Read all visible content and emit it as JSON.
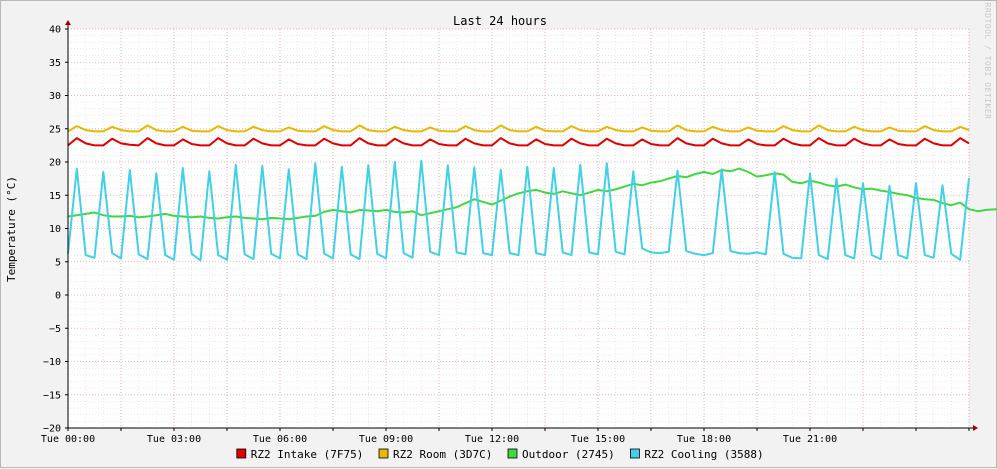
{
  "colors": {
    "background": "#f2f2f2",
    "plot_bg": "#ffffff",
    "grid_minor": "#dcdcdc",
    "grid_major": "#e8a0a0",
    "axis_arrow": "#a00000"
  },
  "chart_data": {
    "type": "line",
    "title": "Last 24 hours",
    "ylabel": "Temperature (°C)",
    "watermark": "RRDTOOL / TOBI OETIKER",
    "ylim": [
      -20,
      40
    ],
    "yticks": [
      40,
      35,
      30,
      25,
      20,
      15,
      10,
      5,
      0,
      -5,
      -10,
      -15,
      -20
    ],
    "xlim_hours": [
      0,
      25.5
    ],
    "xticks": [
      {
        "hour": 0,
        "label": "Tue 00:00"
      },
      {
        "hour": 3,
        "label": "Tue 03:00"
      },
      {
        "hour": 6,
        "label": "Tue 06:00"
      },
      {
        "hour": 9,
        "label": "Tue 09:00"
      },
      {
        "hour": 12,
        "label": "Tue 12:00"
      },
      {
        "hour": 15,
        "label": "Tue 15:00"
      },
      {
        "hour": 18,
        "label": "Tue 18:00"
      },
      {
        "hour": 21,
        "label": "Tue 21:00"
      }
    ],
    "sample_step_hours": 0.25,
    "series": [
      {
        "name": "RZ2 Intake (7F75)",
        "color": "#e00000",
        "values": [
          22.5,
          23.6,
          22.8,
          22.5,
          22.5,
          23.5,
          22.8,
          22.6,
          22.5,
          23.6,
          22.8,
          22.5,
          22.5,
          23.4,
          22.7,
          22.5,
          22.5,
          23.6,
          22.8,
          22.5,
          22.5,
          23.5,
          22.8,
          22.5,
          22.5,
          23.4,
          22.7,
          22.5,
          22.5,
          23.5,
          22.8,
          22.5,
          22.5,
          23.6,
          22.8,
          22.5,
          22.5,
          23.5,
          22.8,
          22.5,
          22.5,
          23.4,
          22.7,
          22.5,
          22.5,
          23.5,
          22.8,
          22.5,
          22.5,
          23.6,
          22.8,
          22.5,
          22.5,
          23.4,
          22.7,
          22.5,
          22.5,
          23.5,
          22.8,
          22.5,
          22.5,
          23.5,
          22.8,
          22.5,
          22.5,
          23.4,
          22.7,
          22.5,
          22.5,
          23.6,
          22.8,
          22.5,
          22.5,
          23.5,
          22.8,
          22.5,
          22.5,
          23.4,
          22.7,
          22.5,
          22.5,
          23.5,
          22.8,
          22.5,
          22.5,
          23.6,
          22.8,
          22.5,
          22.5,
          23.5,
          22.8,
          22.5,
          22.5,
          23.4,
          22.7,
          22.5,
          22.5,
          23.5,
          22.8,
          22.5,
          22.5,
          23.6,
          22.8
        ]
      },
      {
        "name": "RZ2 Room (3D7C)",
        "color": "#e8b800",
        "values": [
          24.6,
          25.4,
          24.8,
          24.6,
          24.6,
          25.3,
          24.8,
          24.6,
          24.6,
          25.5,
          24.8,
          24.6,
          24.6,
          25.3,
          24.7,
          24.6,
          24.6,
          25.4,
          24.8,
          24.6,
          24.6,
          25.3,
          24.8,
          24.6,
          24.6,
          25.2,
          24.7,
          24.6,
          24.6,
          25.4,
          24.8,
          24.6,
          24.6,
          25.5,
          24.8,
          24.6,
          24.6,
          25.3,
          24.8,
          24.6,
          24.6,
          25.2,
          24.7,
          24.6,
          24.6,
          25.4,
          24.8,
          24.6,
          24.6,
          25.5,
          24.8,
          24.6,
          24.6,
          25.3,
          24.7,
          24.6,
          24.6,
          25.4,
          24.8,
          24.6,
          24.6,
          25.3,
          24.8,
          24.6,
          24.6,
          25.2,
          24.7,
          24.6,
          24.6,
          25.5,
          24.8,
          24.6,
          24.6,
          25.3,
          24.8,
          24.6,
          24.6,
          25.2,
          24.7,
          24.6,
          24.6,
          25.4,
          24.8,
          24.6,
          24.6,
          25.5,
          24.8,
          24.6,
          24.6,
          25.3,
          24.8,
          24.6,
          24.6,
          25.2,
          24.7,
          24.6,
          24.6,
          25.4,
          24.8,
          24.6,
          24.6,
          25.3,
          24.8
        ]
      },
      {
        "name": "Outdoor (2745)",
        "color": "#40d840",
        "values": [
          11.8,
          12.0,
          12.2,
          12.4,
          12.0,
          11.8,
          11.8,
          11.9,
          11.7,
          11.8,
          12.0,
          12.2,
          11.9,
          11.8,
          11.7,
          11.8,
          11.6,
          11.5,
          11.7,
          11.8,
          11.6,
          11.5,
          11.4,
          11.6,
          11.5,
          11.4,
          11.6,
          11.8,
          11.9,
          12.5,
          12.8,
          12.6,
          12.4,
          12.8,
          12.7,
          12.6,
          12.8,
          12.5,
          12.4,
          12.6,
          12.0,
          12.3,
          12.6,
          12.9,
          13.2,
          13.8,
          14.4,
          14.0,
          13.6,
          14.2,
          14.8,
          15.3,
          15.6,
          15.8,
          15.4,
          15.2,
          15.6,
          15.3,
          15.0,
          15.4,
          15.8,
          15.6,
          15.9,
          16.3,
          16.7,
          16.5,
          16.9,
          17.1,
          17.5,
          17.9,
          17.7,
          18.2,
          18.5,
          18.2,
          18.8,
          18.6,
          19.0,
          18.5,
          17.8,
          18.0,
          18.3,
          18.1,
          17.0,
          16.8,
          17.2,
          16.9,
          16.5,
          16.3,
          16.6,
          16.2,
          15.9,
          16.0,
          15.7,
          15.5,
          15.2,
          15.0,
          14.6,
          14.4,
          14.3,
          13.8,
          13.5,
          13.9,
          12.9,
          12.6,
          12.8,
          12.9,
          12.7
        ]
      },
      {
        "name": "RZ2 Cooling (3588)",
        "color": "#40d0e8",
        "values": [
          6.2,
          19.0,
          6.0,
          5.6,
          18.5,
          6.3,
          5.5,
          18.8,
          6.1,
          5.4,
          18.3,
          6.0,
          5.3,
          19.1,
          6.2,
          5.2,
          18.6,
          6.0,
          5.3,
          19.6,
          6.1,
          5.4,
          19.4,
          6.2,
          5.5,
          18.9,
          6.1,
          5.4,
          19.8,
          6.2,
          5.5,
          19.3,
          6.1,
          5.4,
          19.5,
          6.2,
          5.5,
          20.0,
          6.3,
          5.6,
          20.2,
          6.5,
          6.0,
          19.5,
          6.4,
          6.1,
          19.2,
          6.3,
          6.0,
          18.8,
          6.3,
          6.0,
          19.3,
          6.3,
          6.0,
          19.1,
          6.4,
          6.0,
          19.6,
          6.4,
          6.1,
          19.8,
          6.5,
          6.1,
          18.6,
          7.0,
          6.4,
          6.3,
          6.5,
          18.7,
          6.6,
          6.2,
          6.0,
          6.3,
          18.9,
          6.6,
          6.3,
          6.2,
          6.4,
          6.1,
          18.5,
          6.2,
          5.6,
          5.5,
          18.3,
          6.0,
          5.4,
          17.5,
          6.0,
          5.5,
          16.8,
          6.0,
          5.4,
          16.4,
          6.0,
          5.5,
          16.8,
          6.0,
          5.6,
          16.5,
          6.2,
          5.3,
          17.6
        ]
      }
    ]
  },
  "legend": {
    "items": [
      {
        "label": "RZ2 Intake (7F75)",
        "color": "#e00000"
      },
      {
        "label": "RZ2 Room (3D7C)",
        "color": "#e8b800"
      },
      {
        "label": "Outdoor (2745)",
        "color": "#40d840"
      },
      {
        "label": "RZ2 Cooling (3588)",
        "color": "#40d0e8"
      }
    ]
  }
}
